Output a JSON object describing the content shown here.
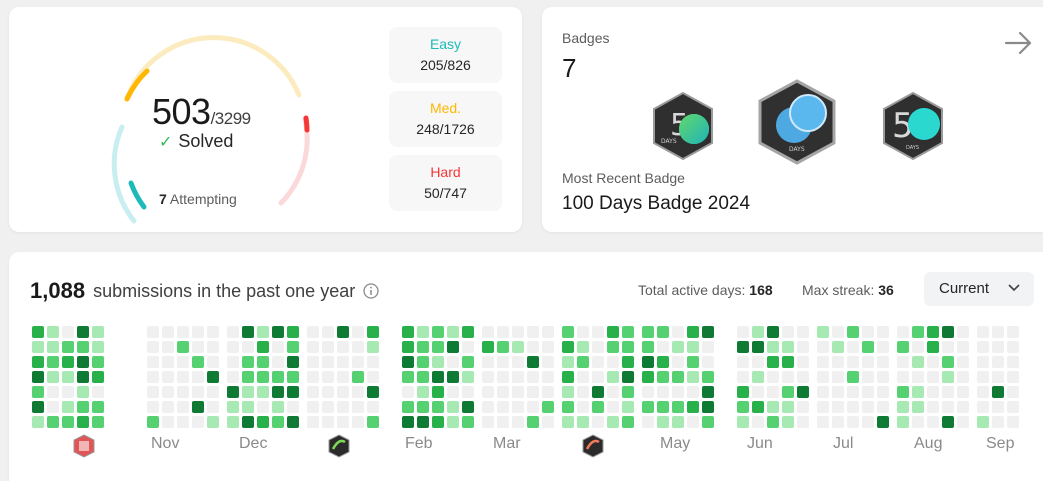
{
  "progress": {
    "solved": "503",
    "total": "/3299",
    "solved_label": "Solved",
    "attempting_count": "7",
    "attempting_label": "Attempting",
    "difficulties": [
      {
        "name": "Easy",
        "count": "205/826",
        "color": "#1cbaba"
      },
      {
        "name": "Med.",
        "count": "248/1726",
        "color": "#ffb700"
      },
      {
        "name": "Hard",
        "count": "50/747",
        "color": "#f63737"
      }
    ]
  },
  "badges": {
    "title": "Badges",
    "count": "7",
    "recent_label": "Most Recent Badge",
    "recent_name": "100 Days Badge 2024",
    "icons": [
      "50-days-badge-icon",
      "100-days-badge-icon",
      "50-days-badge-icon"
    ],
    "badge_text": [
      "DAYS",
      "DAYS",
      "DAYS"
    ]
  },
  "submissions": {
    "count": "1,088",
    "label": "submissions in the past one year",
    "active_days_label": "Total active days:",
    "active_days": "168",
    "max_streak_label": "Max streak:",
    "max_streak": "36",
    "period": "Current",
    "months": [
      "Nov",
      "Dec",
      "Feb",
      "Mar",
      "May",
      "Jun",
      "Jul",
      "Aug",
      "Sep"
    ],
    "colors": {
      "empty": "#f0f0f0",
      "l1": "#a6e9b2",
      "l2": "#55d171",
      "l3": "#28b04a",
      "l4": "#0f7a33"
    }
  }
}
